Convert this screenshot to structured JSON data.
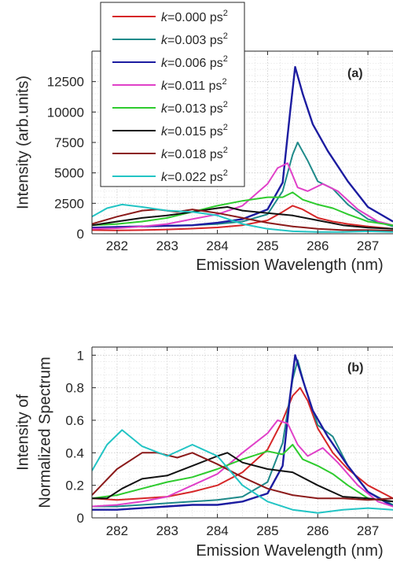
{
  "chart_data": [
    {
      "type": "line",
      "panel_label": "(a)",
      "xlabel": "Emission Wavelength (nm)",
      "ylabel": "Intensity (arb.units)",
      "xlim": [
        281.5,
        287.5
      ],
      "ylim": [
        0,
        15000
      ],
      "xticks": [
        282,
        283,
        284,
        285,
        286,
        287
      ],
      "yticks": [
        0,
        2500,
        5000,
        7500,
        10000,
        12500
      ],
      "grid": true,
      "legend_position": "top-left",
      "series": [
        {
          "name": "k=0.000 ps2",
          "color": "#d62728",
          "x": [
            281.5,
            282,
            282.5,
            283,
            283.5,
            284,
            284.5,
            285,
            285.3,
            285.5,
            285.7,
            286,
            286.3,
            286.6,
            287,
            287.5
          ],
          "y": [
            300,
            280,
            300,
            350,
            420,
            520,
            700,
            1100,
            1800,
            2300,
            2000,
            1300,
            1000,
            800,
            600,
            400
          ]
        },
        {
          "name": "k=0.003 ps2",
          "color": "#1f8a8a",
          "x": [
            281.5,
            282,
            282.5,
            283,
            283.5,
            284,
            284.5,
            285,
            285.3,
            285.5,
            285.6,
            285.8,
            286,
            286.3,
            286.6,
            287,
            287.5
          ],
          "y": [
            500,
            550,
            600,
            650,
            700,
            800,
            1000,
            1600,
            3500,
            6500,
            7500,
            6000,
            4300,
            3700,
            2400,
            1200,
            600
          ]
        },
        {
          "name": "k=0.006 ps2",
          "color": "#1c1ca0",
          "x": [
            281.5,
            282,
            282.5,
            283,
            283.5,
            284,
            284.5,
            285,
            285.3,
            285.45,
            285.55,
            285.7,
            285.9,
            286.2,
            286.6,
            287,
            287.5
          ],
          "y": [
            500,
            550,
            600,
            650,
            700,
            900,
            1200,
            2000,
            4200,
            10000,
            13700,
            11500,
            9000,
            6800,
            4300,
            2200,
            1000
          ]
        },
        {
          "name": "k=0.011 ps2",
          "color": "#e040c8",
          "x": [
            281.5,
            282,
            282.5,
            283,
            283.5,
            284,
            284.5,
            285,
            285.2,
            285.4,
            285.6,
            285.8,
            286.1,
            286.4,
            286.8,
            287.2,
            287.5
          ],
          "y": [
            400,
            450,
            600,
            800,
            1200,
            1600,
            2300,
            4100,
            5400,
            5800,
            3800,
            3500,
            4100,
            3500,
            2000,
            1000,
            700
          ]
        },
        {
          "name": "k=0.013 ps2",
          "color": "#2ecb2e",
          "x": [
            281.5,
            282,
            282.5,
            283,
            283.5,
            284,
            284.5,
            285,
            285.3,
            285.5,
            285.7,
            286,
            286.3,
            286.6,
            287,
            287.5
          ],
          "y": [
            700,
            800,
            1000,
            1300,
            1800,
            2300,
            2700,
            3000,
            3000,
            3400,
            2800,
            2400,
            2100,
            1600,
            1000,
            700
          ]
        },
        {
          "name": "k=0.015 ps2",
          "color": "#111111",
          "x": [
            281.5,
            282,
            282.5,
            283,
            283.5,
            284,
            284.2,
            284.5,
            285,
            285.5,
            286,
            286.5,
            287,
            287.5
          ],
          "y": [
            700,
            1000,
            1300,
            1500,
            1800,
            2100,
            2200,
            1900,
            1700,
            1500,
            1100,
            700,
            500,
            400
          ]
        },
        {
          "name": "k=0.018 ps2",
          "color": "#8b1a1a",
          "x": [
            281.5,
            282,
            282.5,
            282.8,
            283.2,
            283.5,
            284,
            284.5,
            285,
            285.5,
            286,
            286.5,
            287,
            287.5
          ],
          "y": [
            800,
            1400,
            1900,
            2000,
            1800,
            2000,
            1700,
            1300,
            900,
            600,
            400,
            300,
            300,
            250
          ]
        },
        {
          "name": "k=0.022 ps2",
          "color": "#22c4c4",
          "x": [
            281.5,
            281.8,
            282.1,
            282.5,
            283,
            283.5,
            284,
            284.5,
            285,
            285.5,
            286,
            286.5,
            287,
            287.5
          ],
          "y": [
            1400,
            2100,
            2400,
            2200,
            1900,
            1800,
            1500,
            800,
            400,
            200,
            150,
            150,
            200,
            150
          ]
        }
      ]
    },
    {
      "type": "line",
      "panel_label": "(b)",
      "xlabel": "Emission Wavelength (nm)",
      "ylabel": [
        "Intensity of",
        "Normalized Spectrum"
      ],
      "xlim": [
        281.5,
        287.5
      ],
      "ylim": [
        0,
        1.05
      ],
      "xticks": [
        282,
        283,
        284,
        285,
        286,
        287
      ],
      "yticks": [
        0,
        0.2,
        0.4,
        0.6,
        0.8,
        1
      ],
      "grid": true,
      "series": [
        {
          "name": "k=0.000 ps2",
          "color": "#d62728",
          "x": [
            281.5,
            282,
            282.5,
            283,
            283.5,
            284,
            284.5,
            285,
            285.3,
            285.5,
            285.65,
            285.8,
            286,
            286.3,
            286.6,
            287,
            287.5
          ],
          "y": [
            0.12,
            0.11,
            0.12,
            0.13,
            0.16,
            0.2,
            0.28,
            0.42,
            0.6,
            0.75,
            0.8,
            0.72,
            0.55,
            0.4,
            0.3,
            0.2,
            0.12
          ]
        },
        {
          "name": "k=0.003 ps2",
          "color": "#1f8a8a",
          "x": [
            281.5,
            282,
            282.5,
            283,
            283.5,
            284,
            284.5,
            285,
            285.3,
            285.5,
            285.6,
            285.75,
            286,
            286.3,
            286.6,
            287,
            287.5
          ],
          "y": [
            0.07,
            0.07,
            0.08,
            0.09,
            0.1,
            0.11,
            0.13,
            0.22,
            0.46,
            0.85,
            0.97,
            0.8,
            0.57,
            0.5,
            0.32,
            0.16,
            0.08
          ]
        },
        {
          "name": "k=0.006 ps2",
          "color": "#1c1ca0",
          "x": [
            281.5,
            282,
            282.5,
            283,
            283.5,
            284,
            284.5,
            285,
            285.3,
            285.45,
            285.55,
            285.7,
            285.9,
            286.2,
            286.6,
            287,
            287.5
          ],
          "y": [
            0.05,
            0.05,
            0.06,
            0.07,
            0.08,
            0.08,
            0.1,
            0.15,
            0.32,
            0.75,
            1.0,
            0.85,
            0.66,
            0.5,
            0.32,
            0.16,
            0.07
          ]
        },
        {
          "name": "k=0.011 ps2",
          "color": "#e040c8",
          "x": [
            281.5,
            282,
            282.5,
            283,
            283.5,
            284,
            284.5,
            285,
            285.2,
            285.4,
            285.6,
            285.8,
            286.1,
            286.4,
            286.8,
            287.2,
            287.5
          ],
          "y": [
            0.07,
            0.08,
            0.1,
            0.13,
            0.2,
            0.27,
            0.4,
            0.52,
            0.6,
            0.58,
            0.45,
            0.38,
            0.43,
            0.34,
            0.2,
            0.1,
            0.07
          ]
        },
        {
          "name": "k=0.013 ps2",
          "color": "#2ecb2e",
          "x": [
            281.5,
            282,
            282.5,
            283,
            283.5,
            284,
            284.5,
            285,
            285.3,
            285.5,
            285.7,
            286,
            286.3,
            286.6,
            287,
            287.5
          ],
          "y": [
            0.12,
            0.14,
            0.18,
            0.22,
            0.25,
            0.3,
            0.36,
            0.41,
            0.39,
            0.45,
            0.36,
            0.32,
            0.27,
            0.2,
            0.12,
            0.1
          ]
        },
        {
          "name": "k=0.015 ps2",
          "color": "#111111",
          "x": [
            281.5,
            281.8,
            282.1,
            282.5,
            283,
            283.5,
            284,
            284.2,
            284.5,
            285,
            285.5,
            286,
            286.5,
            287,
            287.5
          ],
          "y": [
            0.12,
            0.12,
            0.18,
            0.24,
            0.26,
            0.32,
            0.38,
            0.4,
            0.34,
            0.3,
            0.28,
            0.2,
            0.13,
            0.12,
            0.1
          ]
        },
        {
          "name": "k=0.018 ps2",
          "color": "#8b1a1a",
          "x": [
            281.5,
            282,
            282.5,
            282.8,
            283.2,
            283.5,
            284,
            284.5,
            285,
            285.5,
            286,
            286.5,
            287,
            287.5
          ],
          "y": [
            0.14,
            0.3,
            0.4,
            0.4,
            0.37,
            0.4,
            0.33,
            0.25,
            0.18,
            0.14,
            0.12,
            0.12,
            0.11,
            0.12
          ]
        },
        {
          "name": "k=0.022 ps2",
          "color": "#22c4c4",
          "x": [
            281.5,
            281.8,
            282.1,
            282.5,
            283,
            283.5,
            284,
            284.5,
            285,
            285.5,
            286,
            286.5,
            287,
            287.5
          ],
          "y": [
            0.29,
            0.45,
            0.54,
            0.44,
            0.38,
            0.45,
            0.38,
            0.2,
            0.1,
            0.05,
            0.03,
            0.05,
            0.06,
            0.05
          ]
        }
      ]
    }
  ]
}
